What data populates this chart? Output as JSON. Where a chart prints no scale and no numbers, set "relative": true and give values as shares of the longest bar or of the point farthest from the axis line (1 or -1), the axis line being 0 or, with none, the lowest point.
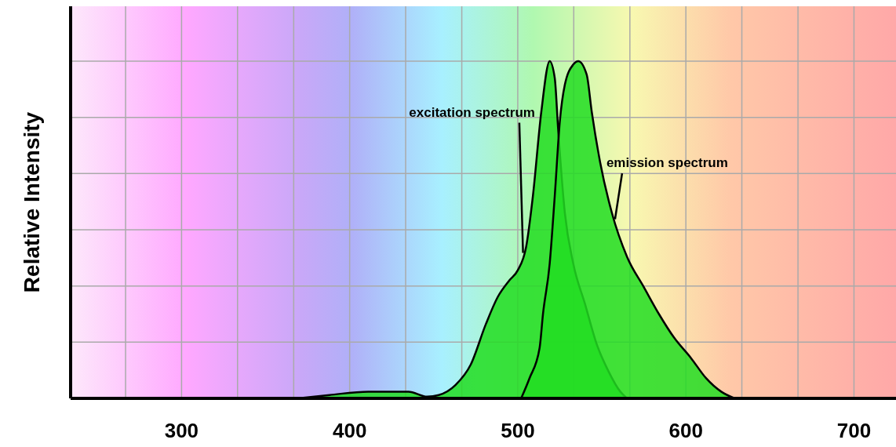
{
  "chart_data": {
    "type": "area",
    "ylabel": "Relative Intensity",
    "relative": true,
    "grid": true,
    "xlim": [
      234,
      725
    ],
    "xticks": [
      {
        "value": 266.7,
        "label": null
      },
      300,
      {
        "value": 333.3,
        "label": null
      },
      {
        "value": 366.7,
        "label": null
      },
      400,
      {
        "value": 433.3,
        "label": null
      },
      {
        "value": 466.7,
        "label": null
      },
      500,
      {
        "value": 533.3,
        "label": null
      },
      {
        "value": 566.7,
        "label": null
      },
      600,
      {
        "value": 633.3,
        "label": null
      },
      {
        "value": 666.7,
        "label": null
      },
      700
    ],
    "series": [
      {
        "name": "excitation spectrum",
        "color": "#22dd22",
        "x": [
          369,
          388,
          411,
          435,
          446,
          453,
          463,
          472,
          481,
          488,
          495,
          500,
          505,
          509,
          514,
          519,
          522,
          524,
          528,
          533,
          540,
          547,
          554,
          561,
          565
        ],
        "values": [
          0,
          0.01,
          0.02,
          0.02,
          0.005,
          0.01,
          0.04,
          0.1,
          0.22,
          0.3,
          0.35,
          0.38,
          0.45,
          0.6,
          0.85,
          1,
          0.95,
          0.8,
          0.55,
          0.4,
          0.28,
          0.16,
          0.08,
          0.02,
          0
        ]
      },
      {
        "name": "emission spectrum",
        "color": "#22dd22",
        "x": [
          502,
          507,
          513,
          515,
          519,
          522,
          525,
          528,
          533,
          536,
          541,
          544,
          549,
          556,
          565,
          575,
          584,
          593,
          603,
          612,
          621,
          629
        ],
        "values": [
          0,
          0.06,
          0.15,
          0.25,
          0.4,
          0.6,
          0.82,
          0.93,
          0.99,
          1,
          0.96,
          0.85,
          0.7,
          0.55,
          0.42,
          0.33,
          0.25,
          0.18,
          0.12,
          0.06,
          0.02,
          0
        ]
      }
    ]
  }
}
